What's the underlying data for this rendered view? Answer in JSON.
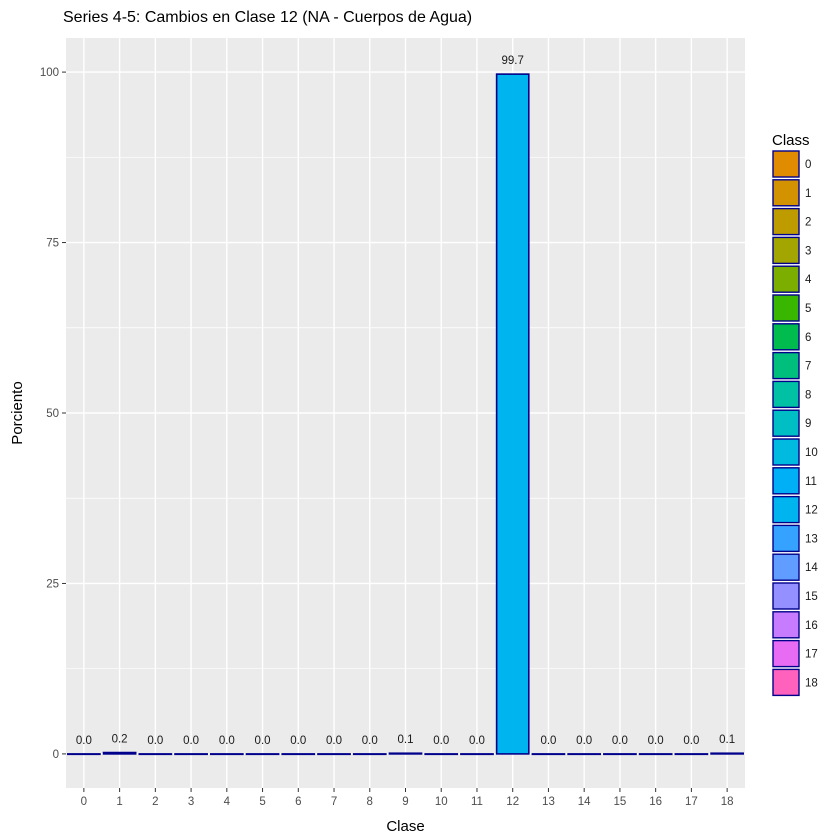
{
  "chart_data": {
    "type": "bar",
    "title": "Series 4-5: Cambios en Clase 12 (NA - Cuerpos de Agua)",
    "xlabel": "Clase",
    "ylabel": "Porciento",
    "categories": [
      "0",
      "1",
      "2",
      "3",
      "4",
      "5",
      "6",
      "7",
      "8",
      "9",
      "10",
      "11",
      "12",
      "13",
      "14",
      "15",
      "16",
      "17",
      "18"
    ],
    "values": [
      0.0,
      0.2,
      0.0,
      0.0,
      0.0,
      0.0,
      0.0,
      0.0,
      0.0,
      0.1,
      0.0,
      0.0,
      99.7,
      0.0,
      0.0,
      0.0,
      0.0,
      0.0,
      0.1
    ],
    "value_labels": [
      "0.0",
      "0.2",
      "0.0",
      "0.0",
      "0.0",
      "0.0",
      "0.0",
      "0.0",
      "0.0",
      "0.1",
      "0.0",
      "0.0",
      "99.7",
      "0.0",
      "0.0",
      "0.0",
      "0.0",
      "0.0",
      "0.1"
    ],
    "ylim": [
      -5,
      105
    ],
    "yticks": [
      0,
      25,
      50,
      75,
      100
    ],
    "grid": true,
    "legend": {
      "title": "Class",
      "position": "right",
      "entries": [
        "0",
        "1",
        "2",
        "3",
        "4",
        "5",
        "6",
        "7",
        "8",
        "9",
        "10",
        "11",
        "12",
        "13",
        "14",
        "15",
        "16",
        "17",
        "18"
      ]
    },
    "colors": [
      "#E08B00",
      "#D39200",
      "#BE9C00",
      "#A3A500",
      "#7CAE00",
      "#39B600",
      "#00BB4E",
      "#00BF7D",
      "#00C1A3",
      "#00BFC4",
      "#00BAE0",
      "#00B0F6",
      "#00B4EF",
      "#35A2FF",
      "#619CFF",
      "#9590FF",
      "#C77CFF",
      "#E76BF3",
      "#FF62BC"
    ],
    "bar_border_color": "#00008B",
    "panel_color": "#EBEBEB"
  }
}
